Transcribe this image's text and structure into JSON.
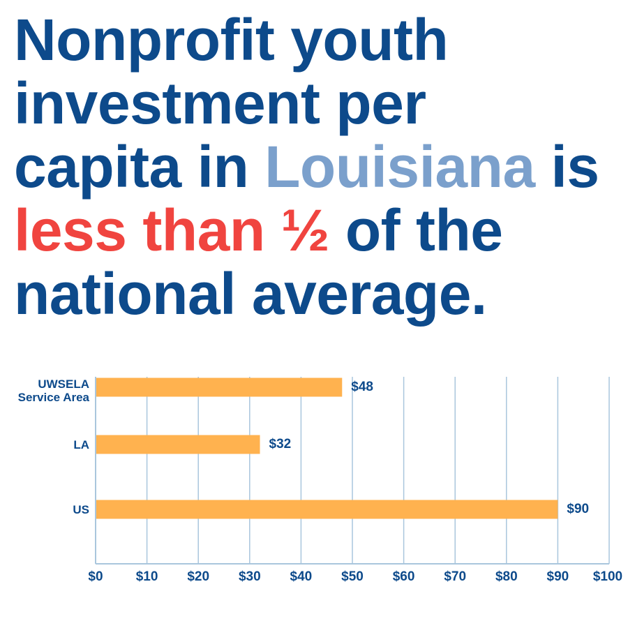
{
  "headline": {
    "line1": "Nonprofit youth",
    "line2": "investment per",
    "line3_pre": "capita in ",
    "line3_state": "Louisiana",
    "line3_post": " is",
    "line4_emph": "less than ½",
    "line4_post": " of the",
    "line5": "national average."
  },
  "colors": {
    "primary": "#0d4a8b",
    "state_highlight": "#7ba0cc",
    "emphasis": "#f0443f",
    "bar": "#ffb24f",
    "grid": "#a9c6dd"
  },
  "chart_data": {
    "type": "bar",
    "orientation": "horizontal",
    "categories": [
      "UWSELA\nService Area",
      "LA",
      "US"
    ],
    "values": [
      48,
      32,
      90
    ],
    "value_labels": [
      "$48",
      "$32",
      "$90"
    ],
    "xlim": [
      0,
      100
    ],
    "x_ticks": [
      0,
      10,
      20,
      30,
      40,
      50,
      60,
      70,
      80,
      90,
      100
    ],
    "x_tick_labels": [
      "$0",
      "$10",
      "$20",
      "$30",
      "$40",
      "$50",
      "$60",
      "$70",
      "$80",
      "$90",
      "$100"
    ],
    "grid": "vertical",
    "legend": "none"
  }
}
